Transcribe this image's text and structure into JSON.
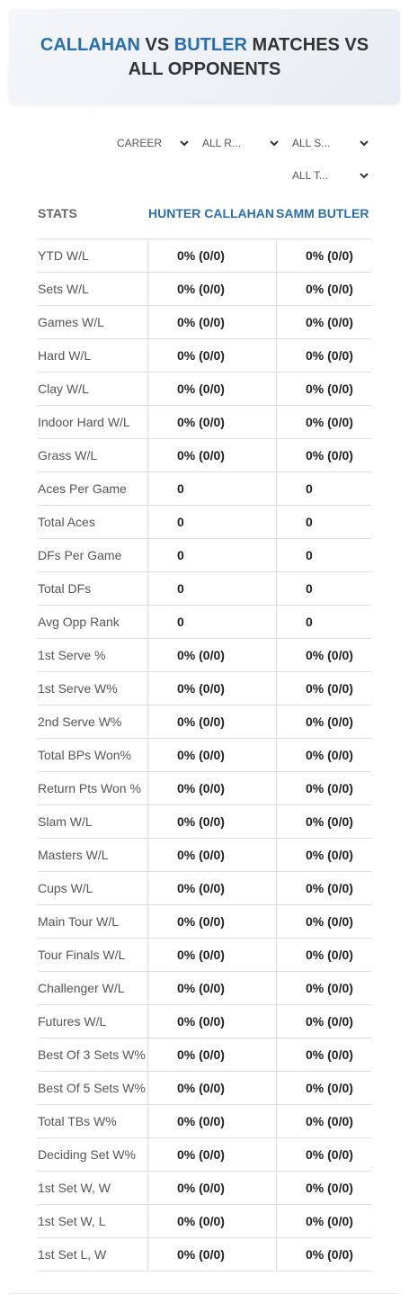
{
  "header": {
    "title_parts": [
      "CALLAHAN",
      "VS",
      "BUTLER",
      "MATCHES VS",
      "ALL OPPONENTS"
    ]
  },
  "filters": [
    "CAREER",
    "ALL R...",
    "ALL S...",
    "ALL T..."
  ],
  "table": {
    "columns": [
      "STATS",
      "HUNTER CALLAHAN",
      "SAMM BUTLER"
    ],
    "rows": [
      [
        "YTD W/L",
        "0% (0/0)",
        "0% (0/0)"
      ],
      [
        "Sets W/L",
        "0% (0/0)",
        "0% (0/0)"
      ],
      [
        "Games W/L",
        "0% (0/0)",
        "0% (0/0)"
      ],
      [
        "Hard W/L",
        "0% (0/0)",
        "0% (0/0)"
      ],
      [
        "Clay W/L",
        "0% (0/0)",
        "0% (0/0)"
      ],
      [
        "Indoor Hard W/L",
        "0% (0/0)",
        "0% (0/0)"
      ],
      [
        "Grass W/L",
        "0% (0/0)",
        "0% (0/0)"
      ],
      [
        "Aces Per Game",
        "0",
        "0"
      ],
      [
        "Total Aces",
        "0",
        "0"
      ],
      [
        "DFs Per Game",
        "0",
        "0"
      ],
      [
        "Total DFs",
        "0",
        "0"
      ],
      [
        "Avg Opp Rank",
        "0",
        "0"
      ],
      [
        "1st Serve %",
        "0% (0/0)",
        "0% (0/0)"
      ],
      [
        "1st Serve W%",
        "0% (0/0)",
        "0% (0/0)"
      ],
      [
        "2nd Serve W%",
        "0% (0/0)",
        "0% (0/0)"
      ],
      [
        "Total BPs Won%",
        "0% (0/0)",
        "0% (0/0)"
      ],
      [
        "Return Pts Won %",
        "0% (0/0)",
        "0% (0/0)"
      ],
      [
        "Slam W/L",
        "0% (0/0)",
        "0% (0/0)"
      ],
      [
        "Masters W/L",
        "0% (0/0)",
        "0% (0/0)"
      ],
      [
        "Cups W/L",
        "0% (0/0)",
        "0% (0/0)"
      ],
      [
        "Main Tour W/L",
        "0% (0/0)",
        "0% (0/0)"
      ],
      [
        "Tour Finals W/L",
        "0% (0/0)",
        "0% (0/0)"
      ],
      [
        "Challenger W/L",
        "0% (0/0)",
        "0% (0/0)"
      ],
      [
        "Futures W/L",
        "0% (0/0)",
        "0% (0/0)"
      ],
      [
        "Best Of 3 Sets W%",
        "0% (0/0)",
        "0% (0/0)"
      ],
      [
        "Best Of 5 Sets W%",
        "0% (0/0)",
        "0% (0/0)"
      ],
      [
        "Total TBs W%",
        "0% (0/0)",
        "0% (0/0)"
      ],
      [
        "Deciding Set W%",
        "0% (0/0)",
        "0% (0/0)"
      ],
      [
        "1st Set W, W",
        "0% (0/0)",
        "0% (0/0)"
      ],
      [
        "1st Set W, L",
        "0% (0/0)",
        "0% (0/0)"
      ],
      [
        "1st Set L, W",
        "0% (0/0)",
        "0% (0/0)"
      ]
    ]
  }
}
